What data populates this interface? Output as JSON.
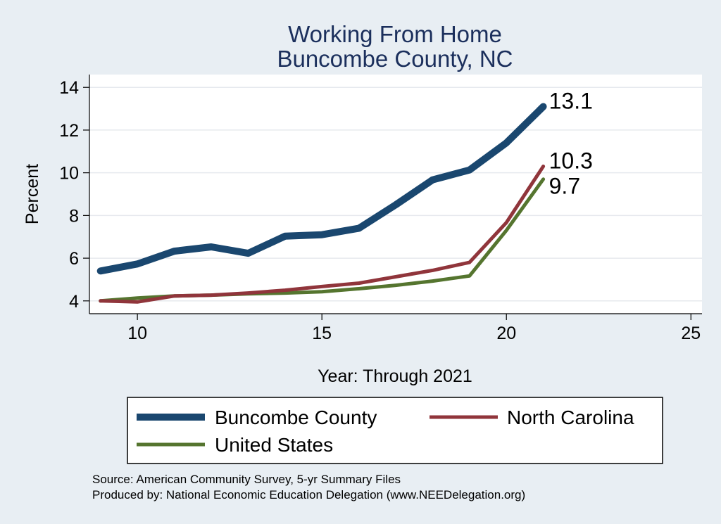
{
  "chart_data": {
    "type": "line",
    "title": [
      "Working From Home",
      "Buncombe County, NC"
    ],
    "xlabel": "Year: Through 2021",
    "ylabel": "Percent",
    "xlim": [
      8.7,
      25.3
    ],
    "ylim": [
      3.4,
      14.6
    ],
    "xticks": [
      10,
      15,
      20,
      25
    ],
    "yticks": [
      4,
      6,
      8,
      10,
      12,
      14
    ],
    "grid": true,
    "legend_position": "bottom",
    "series": [
      {
        "name": "Buncombe County",
        "color": "#1a476f",
        "width": "thick",
        "x": [
          9,
          10,
          11,
          12,
          13,
          14,
          15,
          16,
          17,
          18,
          19,
          20,
          21
        ],
        "y": [
          5.4,
          5.73,
          6.33,
          6.53,
          6.23,
          7.03,
          7.1,
          7.4,
          8.5,
          9.67,
          10.13,
          11.4,
          13.1
        ],
        "end_label": "13.1"
      },
      {
        "name": "North Carolina",
        "color": "#90353b",
        "width": "medium",
        "x": [
          9,
          10,
          11,
          12,
          13,
          14,
          15,
          16,
          17,
          18,
          19,
          20,
          21
        ],
        "y": [
          4.0,
          3.95,
          4.23,
          4.27,
          4.37,
          4.5,
          4.67,
          4.83,
          5.13,
          5.43,
          5.8,
          7.67,
          10.3
        ],
        "end_label": "10.3"
      },
      {
        "name": "United States",
        "color": "#55752f",
        "width": "medium",
        "x": [
          9,
          10,
          11,
          12,
          13,
          14,
          15,
          16,
          17,
          18,
          19,
          20,
          21
        ],
        "y": [
          4.0,
          4.13,
          4.23,
          4.27,
          4.33,
          4.37,
          4.43,
          4.57,
          4.73,
          4.93,
          5.17,
          7.3,
          9.7
        ],
        "end_label": "9.7"
      }
    ],
    "notes": [
      "Source: American Community Survey, 5-yr Summary Files",
      "Produced by: National Economic Education Delegation (www.NEEDelegation.org)"
    ]
  }
}
